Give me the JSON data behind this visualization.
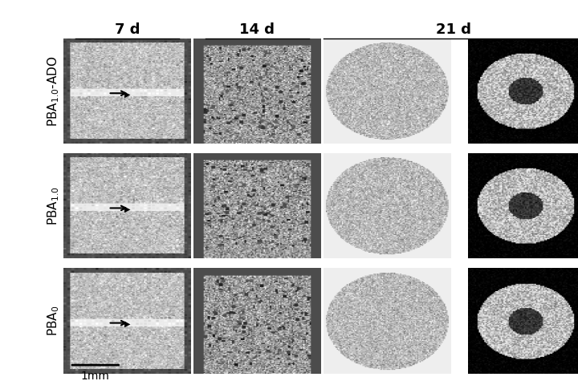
{
  "col_labels": [
    "7 d",
    "14 d",
    "21 d"
  ],
  "row_labels": [
    "PBA$_{1.0}$-ADO",
    "PBA$_{1.0}$",
    "PBA$_0$"
  ],
  "bg_color": "#ffffff",
  "scalebar_label": "1mm",
  "col_label_fontsize": 13,
  "row_label_fontsize": 11,
  "scalebar_fontsize": 10,
  "arrow_color": "#000000",
  "line_color": "#000000",
  "panel_bg_3d": "#d8d8d8",
  "panel_bg_xsect": "#000000"
}
